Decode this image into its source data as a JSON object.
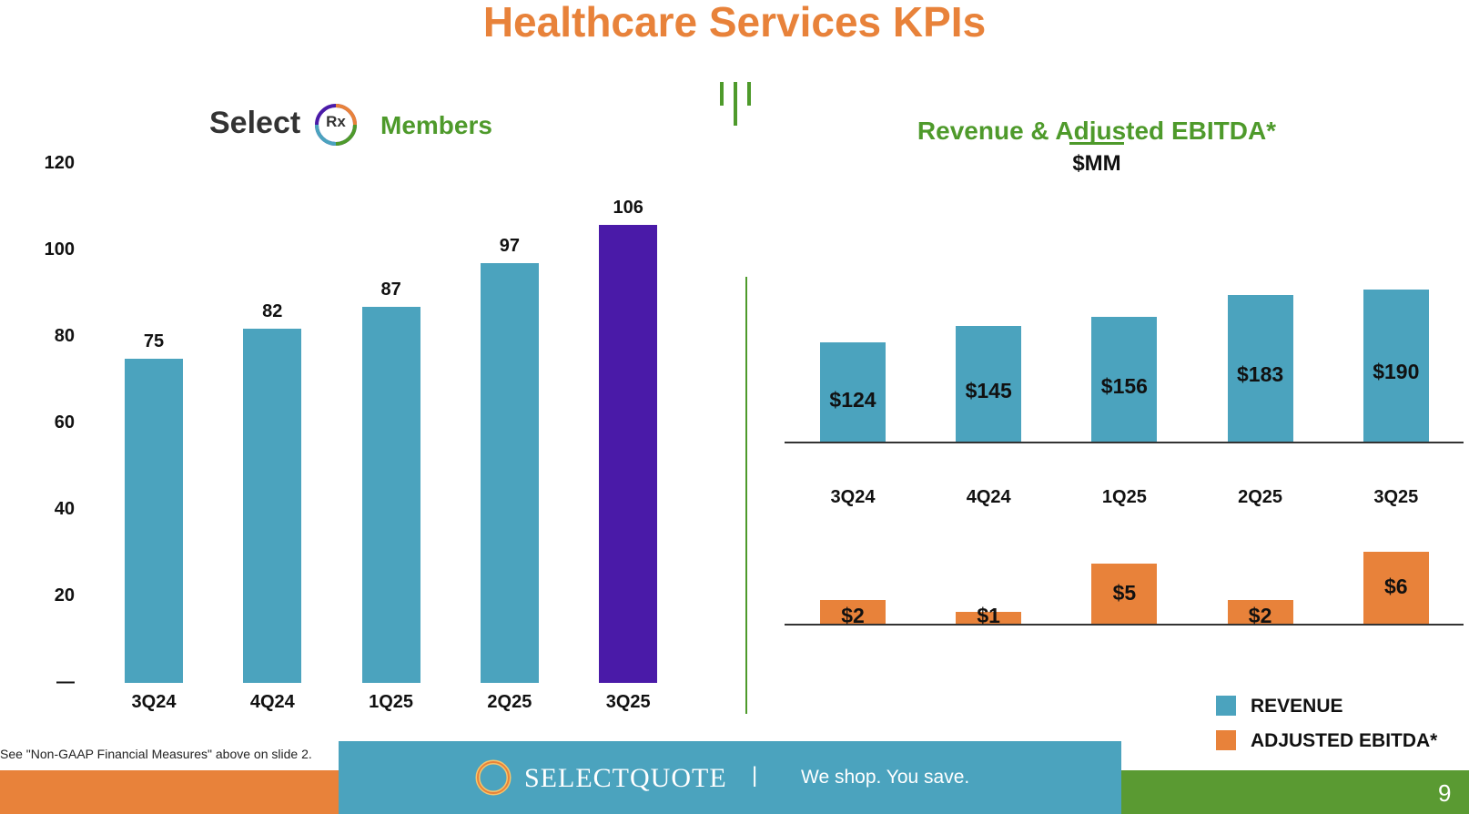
{
  "page": {
    "title": "Healthcare Services KPIs",
    "footnote": "See \"Non-GAAP Financial Measures\" above on slide 2.",
    "page_number": "9"
  },
  "brand": {
    "selectrx_word": "Select",
    "selectrx_badge": "Rx",
    "selectquote_logo": "SELECTQUOTE",
    "tagline_separator": "|",
    "tagline": "We shop. You save."
  },
  "colors": {
    "title_orange": "#E8823A",
    "chart_title_green": "#4E9A2B",
    "teal_bar": "#4BA3BE",
    "purple_bar": "#4A1AA8",
    "orange_bar": "#E8823A",
    "green_band": "#5A9A32"
  },
  "icons": {
    "logo_ring": "selectquote-ring-icon",
    "rx_ring": "selectrx-ring-icon"
  },
  "chart_data": [
    {
      "type": "bar",
      "title": "Members",
      "categories": [
        "3Q24",
        "4Q24",
        "1Q25",
        "2Q25",
        "3Q25"
      ],
      "values": [
        75,
        82,
        87,
        97,
        106
      ],
      "labels": [
        "75",
        "82",
        "87",
        "97",
        "106"
      ],
      "highlight_index": 4,
      "ylim": [
        0,
        120
      ],
      "yticks": [
        0,
        20,
        40,
        60,
        80,
        100,
        120
      ],
      "ytick_labels": [
        "—",
        "20",
        "40",
        "60",
        "80",
        "100",
        "120"
      ],
      "xlabel": "",
      "ylabel": ""
    },
    {
      "type": "bar",
      "title": "Revenue & Adjusted EBITDA*",
      "subtitle": "$MM",
      "categories": [
        "3Q24",
        "4Q24",
        "1Q25",
        "2Q25",
        "3Q25"
      ],
      "series": [
        {
          "name": "REVENUE",
          "values": [
            124,
            145,
            156,
            183,
            190
          ],
          "labels": [
            "$124",
            "$145",
            "$156",
            "$183",
            "$190"
          ]
        },
        {
          "name": "ADJUSTED EBITDA*",
          "values": [
            2,
            1,
            5,
            2,
            6
          ],
          "labels": [
            "$2",
            "$1",
            "$5",
            "$2",
            "$6"
          ]
        }
      ],
      "legend": "bottom-right"
    }
  ]
}
